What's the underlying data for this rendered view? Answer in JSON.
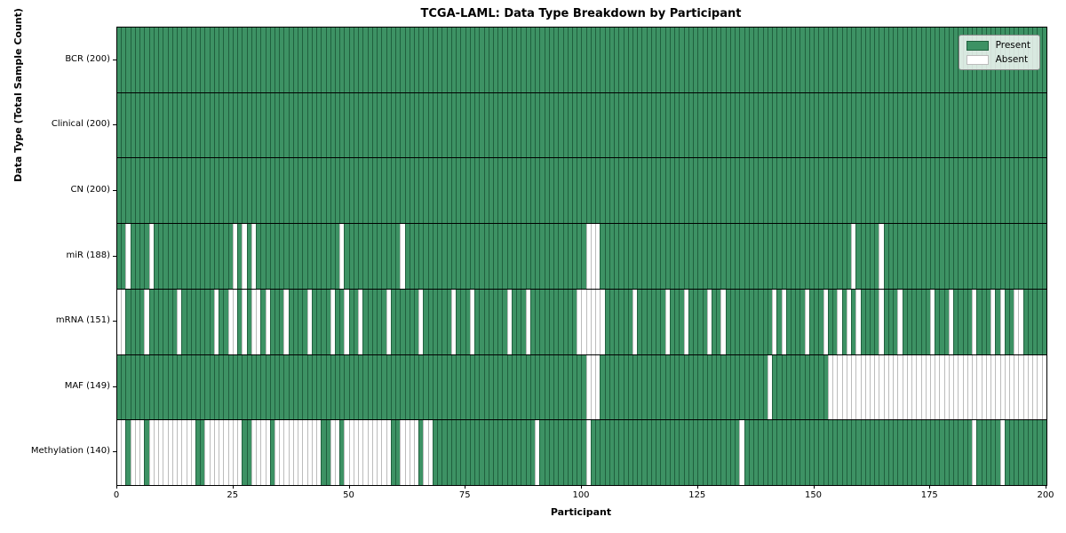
{
  "title": "TCGA-LAML: Data Type Breakdown by Participant",
  "legend": {
    "present_label": "Present",
    "absent_label": "Absent"
  },
  "colors": {
    "present_fill": "#3d9264",
    "present_edge": "#20603e",
    "absent_fill": "#ffffff",
    "absent_edge": "#bcbcbc",
    "axis": "#000000"
  },
  "chart_data": {
    "type": "heatmap",
    "title": "TCGA-LAML: Data Type Breakdown by Participant",
    "xlabel": "Participant",
    "ylabel": "Data Type (Total Sample Count)",
    "x_range": [
      0,
      200
    ],
    "n_participants": 200,
    "x_ticks": [
      0,
      25,
      50,
      75,
      100,
      125,
      150,
      175,
      200
    ],
    "legend_entries": [
      "Present",
      "Absent"
    ],
    "legend_position": "upper right",
    "grid": false,
    "rows": [
      {
        "name": "BCR",
        "total": 200,
        "label": "BCR (200)",
        "absent": []
      },
      {
        "name": "Clinical",
        "total": 200,
        "label": "Clinical (200)",
        "absent": []
      },
      {
        "name": "CN",
        "total": 200,
        "label": "CN (200)",
        "absent": []
      },
      {
        "name": "miR",
        "total": 188,
        "label": "miR (188)",
        "absent": [
          2,
          7,
          25,
          27,
          29,
          48,
          61,
          101,
          102,
          103,
          158,
          164
        ]
      },
      {
        "name": "mRNA",
        "total": 151,
        "label": "mRNA (151)",
        "absent": [
          0,
          1,
          6,
          13,
          21,
          24,
          25,
          27,
          29,
          30,
          32,
          36,
          41,
          46,
          49,
          52,
          58,
          65,
          72,
          76,
          84,
          88,
          99,
          100,
          101,
          102,
          103,
          104,
          111,
          118,
          122,
          127,
          130,
          141,
          143,
          148,
          152,
          155,
          157,
          159,
          164,
          168,
          175,
          179,
          184,
          188,
          190,
          193,
          194
        ]
      },
      {
        "name": "MAF",
        "total": 149,
        "label": "MAF (149)",
        "absent": [
          101,
          102,
          103,
          140,
          153,
          154,
          155,
          156,
          157,
          158,
          159,
          160,
          161,
          162,
          163,
          164,
          165,
          166,
          167,
          168,
          169,
          170,
          171,
          172,
          173,
          174,
          175,
          176,
          177,
          178,
          179,
          180,
          181,
          182,
          183,
          184,
          185,
          186,
          187,
          188,
          189,
          190,
          191,
          192,
          193,
          194,
          195,
          196,
          197,
          198,
          199
        ]
      },
      {
        "name": "Methylation",
        "total": 140,
        "label": "Methylation (140)",
        "absent": [
          0,
          1,
          3,
          4,
          5,
          7,
          8,
          9,
          10,
          11,
          12,
          13,
          14,
          15,
          16,
          19,
          20,
          21,
          22,
          23,
          24,
          25,
          26,
          29,
          30,
          31,
          32,
          34,
          35,
          36,
          37,
          38,
          39,
          40,
          41,
          42,
          43,
          46,
          47,
          49,
          50,
          51,
          52,
          53,
          54,
          55,
          56,
          57,
          58,
          61,
          62,
          63,
          64,
          66,
          67,
          90,
          101,
          134,
          184,
          190
        ]
      }
    ]
  }
}
